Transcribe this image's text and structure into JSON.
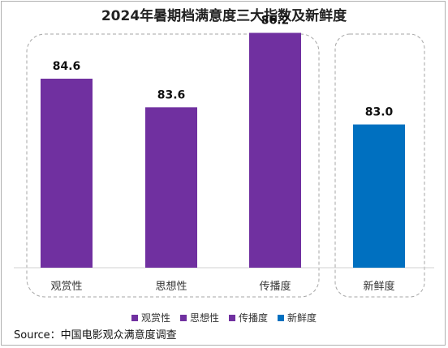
{
  "chart_data": {
    "type": "bar",
    "title": "2024年暑期档满意度三大指数及新鲜度",
    "categories": [
      "观赏性",
      "思想性",
      "传播度",
      "新鲜度"
    ],
    "values": [
      84.6,
      83.6,
      86.2,
      83.0
    ],
    "value_labels": [
      "84.6",
      "83.6",
      "86.2",
      "83.0"
    ],
    "bar_colors": [
      "#7030a0",
      "#7030a0",
      "#7030a0",
      "#0070c0"
    ],
    "ylim": [
      78,
      88
    ],
    "grid": false,
    "legend_position": "bottom",
    "legend": [
      {
        "name": "观赏性",
        "color": "#7030a0"
      },
      {
        "name": "思想性",
        "color": "#7030a0"
      },
      {
        "name": "传播度",
        "color": "#7030a0"
      },
      {
        "name": "新鲜度",
        "color": "#0070c0"
      }
    ],
    "source": "Source：中国电影观众满意度调查"
  }
}
